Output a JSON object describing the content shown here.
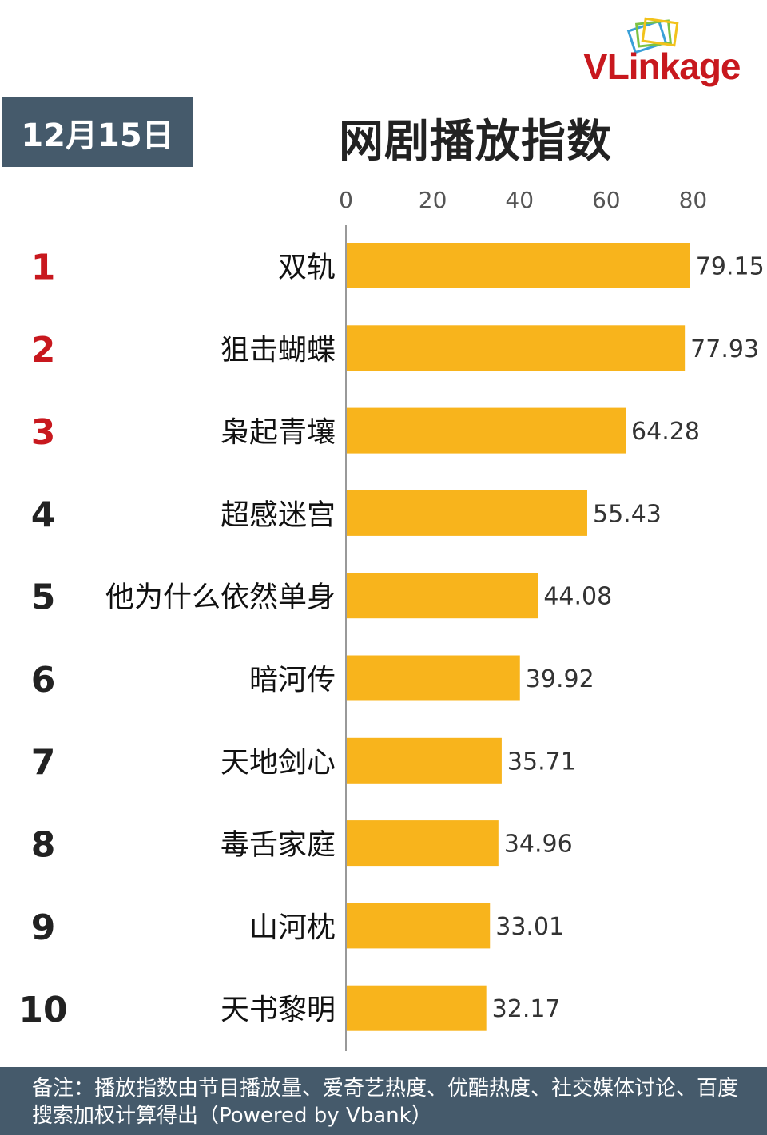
{
  "brand": {
    "logo_v": "V",
    "logo_rest": "Linkage"
  },
  "date_label": "12月15日",
  "chart_data": {
    "type": "bar",
    "orientation": "horizontal",
    "title": "网剧播放指数",
    "ranks": [
      "1",
      "2",
      "3",
      "4",
      "5",
      "6",
      "7",
      "8",
      "9",
      "10"
    ],
    "categories": [
      "双轨",
      "狙击蝴蝶",
      "枭起青壤",
      "超感迷宫",
      "他为什么依然单身",
      "暗河传",
      "天地剑心",
      "毒舌家庭",
      "山河枕",
      "天书黎明"
    ],
    "values": [
      79.15,
      77.93,
      64.28,
      55.43,
      44.08,
      39.92,
      35.71,
      34.96,
      33.01,
      32.17
    ],
    "value_labels": [
      "79.15",
      "77.93",
      "64.28",
      "55.43",
      "44.08",
      "39.92",
      "35.71",
      "34.96",
      "33.01",
      "32.17"
    ],
    "x_ticks": [
      0,
      20,
      40,
      60,
      80
    ],
    "xlim": [
      0,
      80
    ],
    "axis_position": "top",
    "grid": false,
    "legend": "none"
  },
  "colors": {
    "bar": "#f8b41c",
    "top_rank": "#c8181e",
    "rank": "#222222",
    "header_bg": "#455a6b",
    "axis": "#999999"
  },
  "footer": {
    "note": "备注：播放指数由节目播放量、爱奇艺热度、优酷热度、社交媒体讨论、百度搜索加权计算得出（Powered by Vbank）"
  }
}
